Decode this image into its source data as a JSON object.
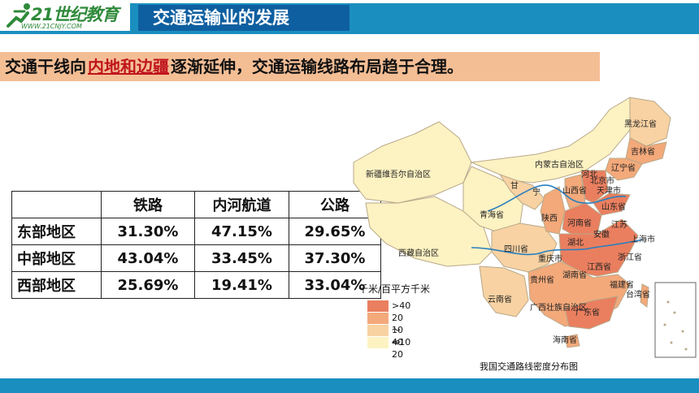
{
  "header": {
    "brand": "21世纪教育",
    "url": "WWW.21CNJY.COM",
    "title": "交通运输业的发展"
  },
  "headline": {
    "before": "交通干线向",
    "key": "内地和边疆",
    "after": "逐渐延伸，交通运输线路布局趋于合理。"
  },
  "table": {
    "columns": [
      "",
      "铁路",
      "内河航道",
      "公路"
    ],
    "rows": [
      {
        "region": "东部地区",
        "rail": "31.30%",
        "river": "47.15%",
        "road": "29.65%"
      },
      {
        "region": "中部地区",
        "rail": "43.04%",
        "river": "33.45%",
        "road": "37.30%"
      },
      {
        "region": "西部地区",
        "rail": "25.69%",
        "river": "19.41%",
        "road": "33.04%"
      }
    ]
  },
  "map": {
    "caption": "我国交通路线密度分布图",
    "legend_title": "千米/百平方千米",
    "legend": [
      {
        "label": ">40",
        "color": "#ea7f5f"
      },
      {
        "label": "20～40",
        "color": "#f3a97a"
      },
      {
        "label": "10～20",
        "color": "#f8d2a2"
      },
      {
        "label": "<10",
        "color": "#fdf2c2"
      }
    ],
    "labels": {
      "xinjiang": "新疆维吾尔自治区",
      "xizang": "西藏自治区",
      "qinghai": "青海省",
      "gansu": "甘",
      "neimenggu": "内蒙古自治区",
      "heilongjiang": "黑龙江省",
      "jilin": "吉林省",
      "liaoning": "辽宁省",
      "beijing": "北京市",
      "tianjin": "天津市",
      "hebei": "河北",
      "shanxi": "山西省",
      "shandong": "山东省",
      "henan": "河南省",
      "sichuan": "四川省",
      "shaanxi": "陕西",
      "hubei": "湖北",
      "anhui": "安徽",
      "jiangsu": "江苏",
      "shanghai": "上海市",
      "zhejiang": "浙江省",
      "hunan": "湖南省",
      "jiangxi": "江西省",
      "fujian": "福建省",
      "guizhou": "贵州省",
      "yunnan": "云南省",
      "guangxi": "广西壮族自治区",
      "guangdong": "广东省",
      "hainan": "海南省",
      "taiwan": "台湾省",
      "ningxia": "宁",
      "chongqing": "重庆市"
    }
  }
}
